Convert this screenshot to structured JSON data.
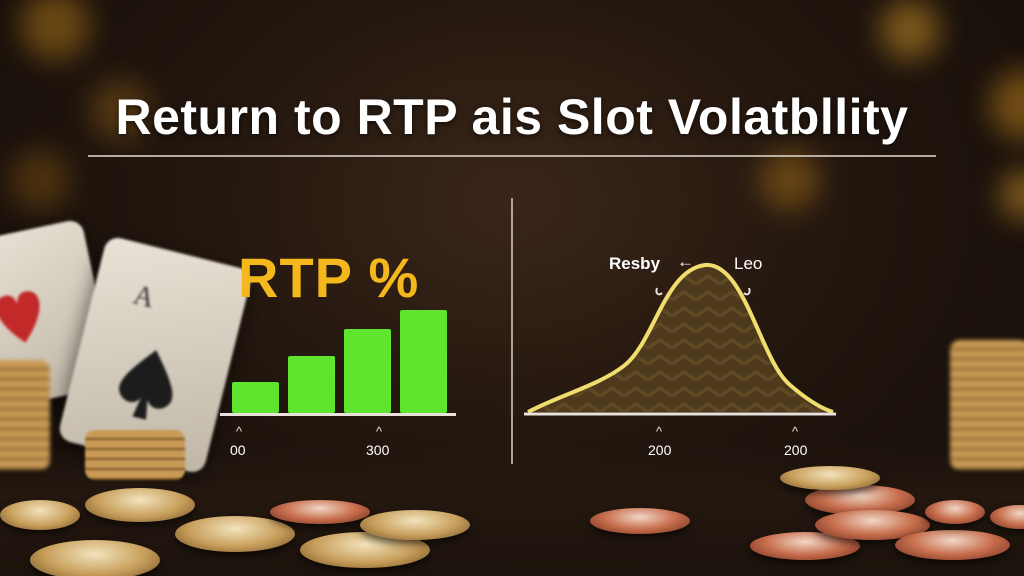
{
  "title": "Return to RTP ais Slot Volatbllity",
  "rtp_chart": {
    "label": "RTP %",
    "bar_values": [
      30,
      55,
      82,
      100
    ],
    "bar_color": "#5fe52e",
    "ticks": [
      {
        "caret": "^",
        "label": "00"
      },
      {
        "caret": "^",
        "label": "300"
      }
    ]
  },
  "volatility_chart": {
    "left_label": "Resby",
    "arrow": "←",
    "right_label": "Leo",
    "curve_color": "#f1dc6e",
    "ticks": [
      {
        "caret": "^",
        "label": "200"
      },
      {
        "caret": "^",
        "label": "200"
      }
    ]
  },
  "colors": {
    "accent_gold": "#f5b81c",
    "bar_green": "#5fe52e",
    "text": "#ffffff"
  }
}
